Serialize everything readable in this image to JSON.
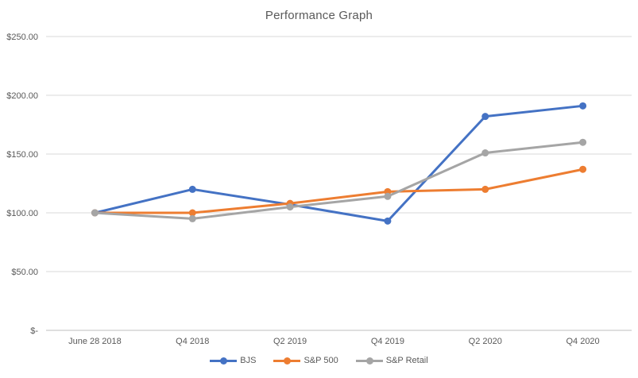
{
  "title": "Performance Graph",
  "colors": {
    "title_text": "#595959",
    "axis_text": "#595959",
    "gridline": "#d9d9d9",
    "axis_line": "#bfbfbf",
    "background": "#ffffff"
  },
  "chart_data": {
    "type": "line",
    "title": "Performance Graph",
    "categories": [
      "June 28 2018",
      "Q4 2018",
      "Q2 2019",
      "Q4 2019",
      "Q2 2020",
      "Q4 2020"
    ],
    "series": [
      {
        "name": "BJS",
        "color": "#4472c4",
        "values": [
          100,
          120,
          107,
          93,
          182,
          191
        ]
      },
      {
        "name": "S&P 500",
        "color": "#ed7d31",
        "values": [
          100,
          100,
          108,
          118,
          120,
          137
        ]
      },
      {
        "name": "S&P Retail",
        "color": "#a5a5a5",
        "values": [
          100,
          95,
          105,
          114,
          151,
          160
        ]
      }
    ],
    "xlabel": "",
    "ylabel": "",
    "ylim": [
      0,
      250
    ],
    "y_tick_values": [
      250,
      200,
      150,
      100,
      50,
      0
    ],
    "y_tick_labels": [
      "$250.00",
      "$200.00",
      "$150.00",
      "$100.00",
      "$50.00",
      "$-"
    ],
    "grid": true,
    "marker": "circle",
    "legend_position": "bottom"
  }
}
